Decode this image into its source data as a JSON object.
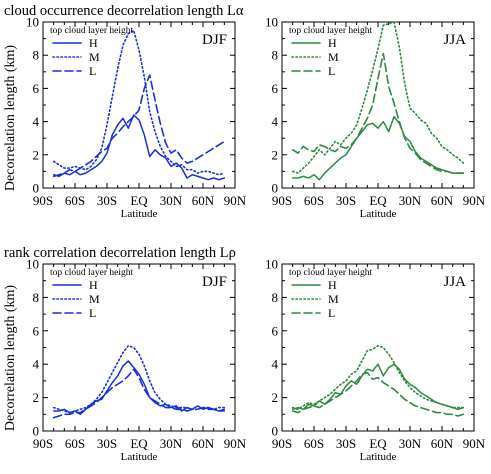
{
  "figure": {
    "ylabel": "Decorrelation length (km)",
    "row_titles": [
      "cloud occurrence decorrelation length Lα",
      "rank correlation decorrelation length Lρ"
    ]
  },
  "colors": {
    "DJF": "#1530d8",
    "JJA": "#2a8a3e"
  },
  "chart_data": [
    {
      "type": "line",
      "row": 0,
      "col": 0,
      "season": "DJF",
      "xlabel": "Latitude",
      "x_ticks": [
        "90S",
        "60S",
        "30S",
        "EQ",
        "30N",
        "60N",
        "90N"
      ],
      "x_tick_values": [
        -90,
        -60,
        -30,
        0,
        30,
        60,
        90
      ],
      "xlim": [
        -90,
        90
      ],
      "ylim": [
        0,
        10
      ],
      "y_ticks": [
        0,
        2,
        4,
        6,
        8,
        10
      ],
      "legend_title": "top cloud layer height",
      "legend_placement": "top-left",
      "x": [
        -80,
        -75,
        -70,
        -65,
        -60,
        -55,
        -50,
        -45,
        -40,
        -35,
        -30,
        -25,
        -20,
        -15,
        -10,
        -5,
        0,
        5,
        10,
        15,
        20,
        25,
        30,
        35,
        40,
        45,
        50,
        55,
        60,
        65,
        70,
        75,
        80
      ],
      "series": [
        {
          "name": "H",
          "style": "solid",
          "values": [
            0.8,
            0.7,
            0.9,
            0.8,
            1.0,
            0.8,
            0.9,
            1.1,
            1.3,
            1.6,
            2.1,
            3.2,
            3.8,
            4.2,
            3.6,
            4.4,
            4.1,
            3.2,
            1.9,
            2.3,
            2.0,
            1.8,
            1.3,
            1.5,
            1.2,
            0.6,
            0.8,
            0.7,
            0.6,
            0.5,
            0.6,
            0.5,
            0.6
          ]
        },
        {
          "name": "M",
          "style": "dotted",
          "values": [
            1.6,
            1.4,
            1.2,
            1.2,
            1.3,
            1.2,
            1.1,
            1.3,
            1.7,
            2.4,
            3.8,
            5.5,
            7.2,
            8.6,
            9.3,
            9.5,
            8.3,
            6.7,
            4.6,
            3.4,
            2.5,
            1.9,
            1.6,
            1.3,
            1.4,
            1.1,
            1.1,
            0.9,
            1.0,
            1.0,
            0.9,
            0.8,
            0.9
          ]
        },
        {
          "name": "L",
          "style": "dashed",
          "values": [
            0.7,
            0.8,
            0.9,
            1.1,
            1.0,
            1.2,
            1.4,
            1.6,
            1.9,
            2.2,
            2.4,
            3.0,
            3.3,
            3.7,
            4.0,
            4.3,
            4.7,
            6.0,
            6.8,
            5.3,
            3.9,
            2.7,
            2.1,
            2.3,
            1.8,
            1.5,
            1.6,
            1.8,
            2.0,
            2.2,
            2.4,
            2.6,
            2.8
          ]
        }
      ]
    },
    {
      "type": "line",
      "row": 0,
      "col": 1,
      "season": "JJA",
      "xlabel": "Latitude",
      "x_ticks": [
        "90S",
        "60S",
        "30S",
        "EQ",
        "30N",
        "60N",
        "90N"
      ],
      "x_tick_values": [
        -90,
        -60,
        -30,
        0,
        30,
        60,
        90
      ],
      "xlim": [
        -90,
        90
      ],
      "ylim": [
        0,
        10
      ],
      "y_ticks": [
        0,
        2,
        4,
        6,
        8,
        10
      ],
      "legend_title": "top cloud layer height",
      "legend_placement": "top-left",
      "x": [
        -80,
        -75,
        -70,
        -65,
        -60,
        -55,
        -50,
        -45,
        -40,
        -35,
        -30,
        -25,
        -20,
        -15,
        -10,
        -5,
        0,
        5,
        10,
        15,
        20,
        25,
        30,
        35,
        40,
        45,
        50,
        55,
        60,
        65,
        70,
        75,
        80
      ],
      "series": [
        {
          "name": "H",
          "style": "solid",
          "values": [
            0.6,
            0.6,
            0.7,
            0.6,
            0.8,
            0.5,
            0.9,
            1.2,
            1.5,
            1.8,
            2.0,
            2.5,
            3.0,
            3.4,
            3.8,
            3.9,
            3.6,
            4.0,
            3.4,
            4.3,
            3.9,
            3.1,
            2.8,
            2.2,
            1.8,
            1.6,
            1.4,
            1.2,
            1.1,
            1.0,
            0.9,
            0.9,
            0.9
          ]
        },
        {
          "name": "M",
          "style": "dotted",
          "values": [
            1.0,
            0.9,
            1.2,
            1.5,
            1.9,
            2.3,
            2.0,
            2.4,
            2.8,
            2.6,
            3.0,
            3.3,
            3.8,
            4.8,
            5.9,
            7.1,
            8.4,
            9.8,
            9.9,
            10.0,
            8.5,
            6.3,
            4.8,
            4.5,
            4.1,
            3.9,
            3.3,
            3.0,
            2.5,
            2.3,
            2.0,
            1.8,
            1.5
          ]
        },
        {
          "name": "L",
          "style": "dashed",
          "values": [
            2.3,
            2.1,
            2.5,
            2.3,
            2.2,
            2.6,
            2.5,
            2.3,
            2.2,
            2.5,
            2.4,
            2.6,
            3.0,
            3.6,
            4.2,
            5.0,
            6.6,
            8.1,
            6.1,
            5.1,
            4.0,
            3.0,
            2.4,
            2.1,
            1.7,
            1.5,
            1.3,
            1.1,
            1.0,
            1.0,
            0.9,
            0.9,
            0.9
          ]
        }
      ]
    },
    {
      "type": "line",
      "row": 1,
      "col": 0,
      "season": "DJF",
      "xlabel": "Latitude",
      "x_ticks": [
        "90S",
        "60S",
        "30S",
        "EQ",
        "30N",
        "60N",
        "90N"
      ],
      "x_tick_values": [
        -90,
        -60,
        -30,
        0,
        30,
        60,
        90
      ],
      "xlim": [
        -90,
        90
      ],
      "ylim": [
        0,
        10
      ],
      "y_ticks": [
        0,
        2,
        4,
        6,
        8,
        10
      ],
      "legend_title": "top cloud layer height",
      "legend_placement": "top-left",
      "x": [
        -80,
        -75,
        -70,
        -65,
        -60,
        -55,
        -50,
        -45,
        -40,
        -35,
        -30,
        -25,
        -20,
        -15,
        -10,
        -5,
        0,
        5,
        10,
        15,
        20,
        25,
        30,
        35,
        40,
        45,
        50,
        55,
        60,
        65,
        70,
        75,
        80
      ],
      "series": [
        {
          "name": "H",
          "style": "solid",
          "values": [
            1.2,
            1.2,
            1.3,
            1.1,
            1.2,
            1.0,
            1.3,
            1.6,
            1.8,
            1.9,
            2.4,
            2.9,
            3.3,
            3.9,
            4.2,
            3.8,
            3.4,
            2.8,
            2.0,
            1.7,
            1.5,
            1.6,
            1.4,
            1.5,
            1.2,
            1.4,
            1.3,
            1.5,
            1.3,
            1.4,
            1.3,
            1.2,
            1.3
          ]
        },
        {
          "name": "M",
          "style": "dotted",
          "values": [
            1.4,
            1.3,
            1.2,
            1.1,
            1.2,
            1.3,
            1.4,
            1.6,
            1.9,
            2.3,
            2.9,
            3.5,
            4.1,
            4.7,
            5.1,
            5.0,
            4.6,
            3.9,
            3.0,
            2.3,
            1.9,
            1.6,
            1.5,
            1.4,
            1.4,
            1.4,
            1.3,
            1.3,
            1.4,
            1.4,
            1.3,
            1.4,
            1.4
          ]
        },
        {
          "name": "L",
          "style": "dashed",
          "values": [
            0.8,
            0.9,
            1.0,
            1.0,
            1.1,
            1.1,
            1.3,
            1.5,
            1.7,
            2.0,
            2.3,
            2.6,
            2.8,
            3.0,
            3.3,
            3.7,
            3.2,
            2.5,
            2.0,
            1.8,
            1.6,
            1.4,
            1.4,
            1.3,
            1.3,
            1.2,
            1.3,
            1.3,
            1.4,
            1.3,
            1.3,
            1.2,
            1.2
          ]
        }
      ]
    },
    {
      "type": "line",
      "row": 1,
      "col": 1,
      "season": "JJA",
      "xlabel": "Latitude",
      "x_ticks": [
        "90S",
        "60S",
        "30S",
        "EQ",
        "30N",
        "60N",
        "90N"
      ],
      "x_tick_values": [
        -90,
        -60,
        -30,
        0,
        30,
        60,
        90
      ],
      "xlim": [
        -90,
        90
      ],
      "ylim": [
        0,
        10
      ],
      "y_ticks": [
        0,
        2,
        4,
        6,
        8,
        10
      ],
      "legend_title": "top cloud layer height",
      "legend_placement": "top-left",
      "x": [
        -80,
        -75,
        -70,
        -65,
        -60,
        -55,
        -50,
        -45,
        -40,
        -35,
        -30,
        -25,
        -20,
        -15,
        -10,
        -5,
        0,
        5,
        10,
        15,
        20,
        25,
        30,
        35,
        40,
        45,
        50,
        55,
        60,
        65,
        70,
        75,
        80
      ],
      "series": [
        {
          "name": "H",
          "style": "solid",
          "values": [
            1.3,
            1.4,
            1.3,
            1.6,
            1.5,
            1.8,
            1.6,
            1.9,
            2.3,
            2.2,
            2.7,
            3.0,
            2.8,
            3.3,
            3.7,
            3.6,
            4.0,
            3.3,
            3.8,
            4.0,
            3.7,
            3.1,
            2.8,
            2.6,
            2.3,
            2.1,
            1.9,
            1.7,
            1.6,
            1.5,
            1.4,
            1.3,
            1.4
          ]
        },
        {
          "name": "M",
          "style": "dotted",
          "values": [
            1.4,
            1.3,
            1.5,
            1.7,
            1.6,
            1.8,
            2.0,
            2.2,
            2.5,
            2.8,
            3.0,
            3.4,
            3.6,
            4.2,
            4.8,
            4.9,
            5.1,
            5.0,
            4.6,
            4.1,
            3.5,
            3.0,
            2.6,
            2.3,
            2.1,
            1.9,
            1.8,
            1.7,
            1.6,
            1.5,
            1.4,
            1.4,
            1.4
          ]
        },
        {
          "name": "L",
          "style": "dashed",
          "values": [
            1.2,
            1.1,
            1.3,
            1.4,
            1.5,
            1.4,
            1.6,
            1.8,
            2.0,
            2.2,
            2.4,
            2.7,
            3.0,
            3.4,
            3.5,
            3.1,
            3.2,
            2.9,
            2.7,
            2.5,
            2.2,
            1.9,
            1.7,
            1.5,
            1.4,
            1.3,
            1.2,
            1.1,
            1.1,
            1.0,
            1.0,
            0.9,
            1.0
          ]
        }
      ]
    }
  ]
}
